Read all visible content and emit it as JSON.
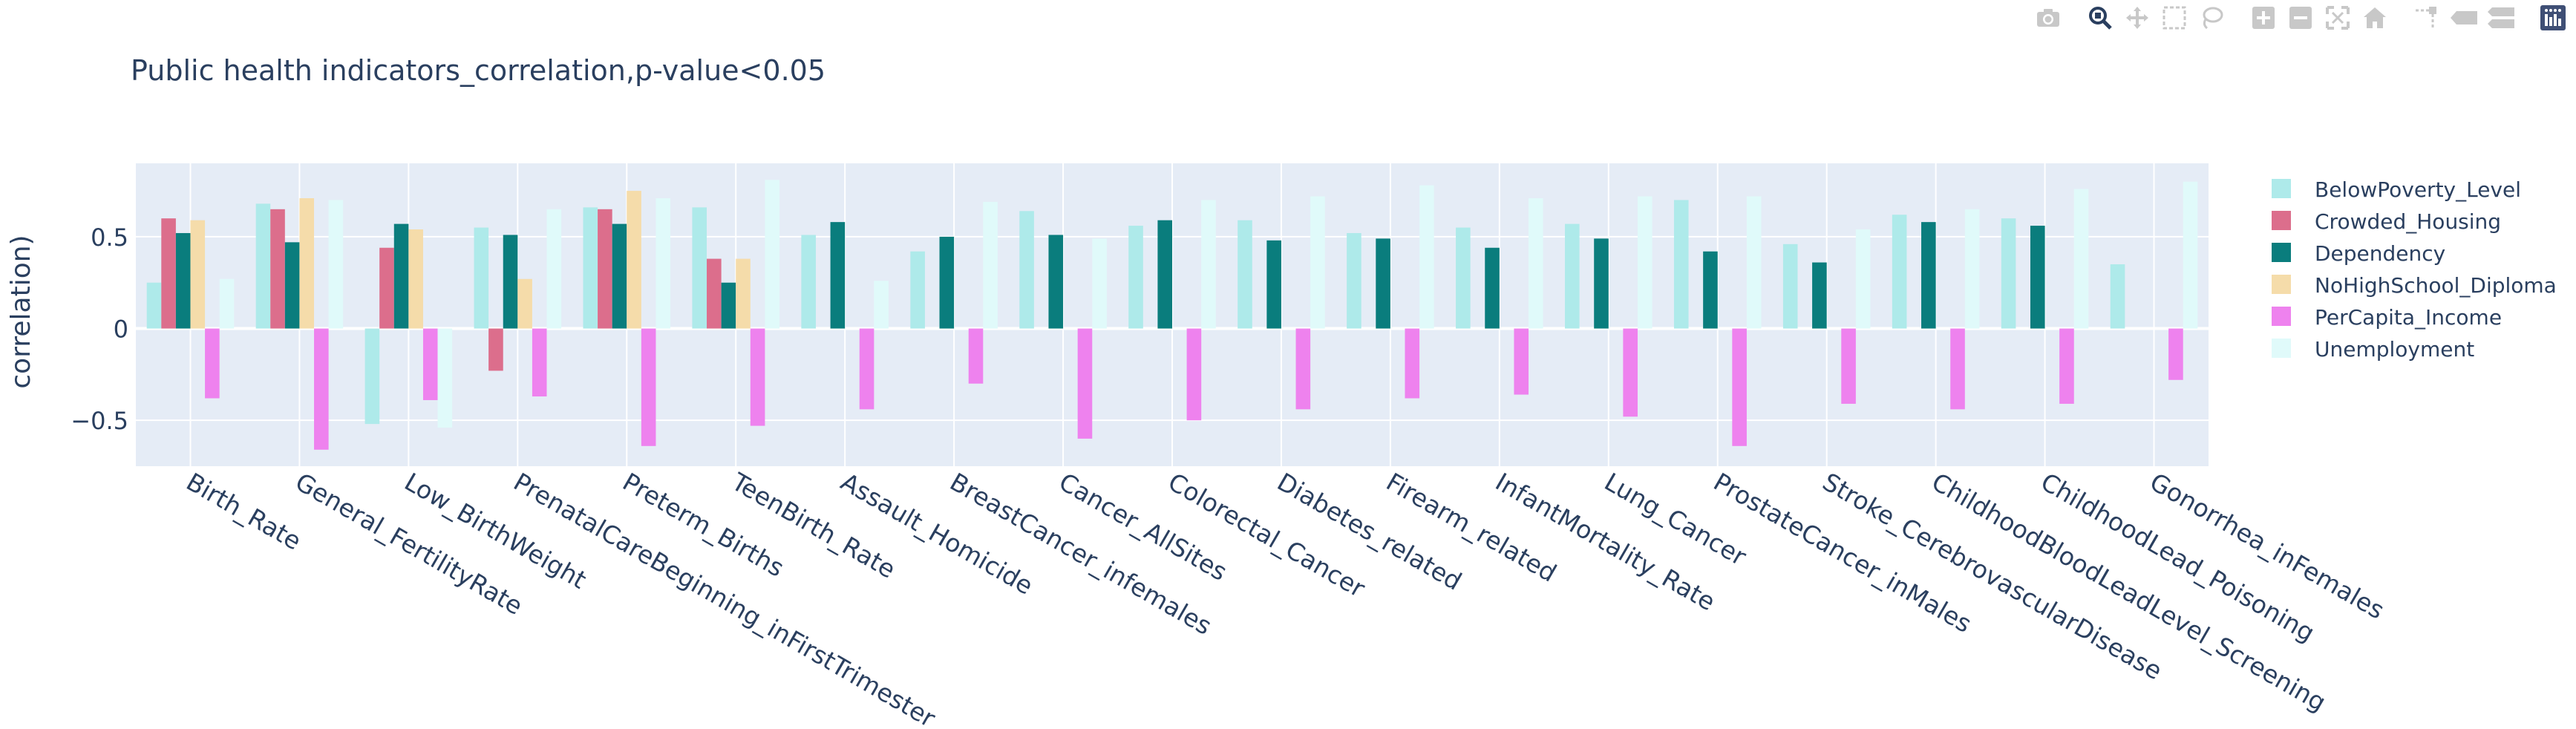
{
  "chart_data": {
    "type": "bar",
    "title": "Public health indicators_correlation,p-value<0.05",
    "xlabel": "",
    "ylabel": "correlation)",
    "ylim": [
      -0.75,
      0.9
    ],
    "y_ticks": [
      -0.5,
      0,
      0.5
    ],
    "y_tick_labels": [
      "−0.5",
      "0",
      "0.5"
    ],
    "grid": true,
    "legend_position": "top-right",
    "categories": [
      "Birth_Rate",
      "General_FertilityRate",
      "Low_BirthWeight",
      "PrenatalCareBeginning_inFirstTrimester",
      "Preterm_Births",
      "TeenBirth_Rate",
      "Assault_Homicide",
      "BreastCancer_infemales",
      "Cancer_AllSites",
      "Colorectal_Cancer",
      "Diabetes_related",
      "Firearm_related",
      "InfantMortality_Rate",
      "Lung_Cancer",
      "ProstateCancer_inMales",
      "Stroke_CerebrovascularDisease",
      "ChildhoodBloodLeadLevel_Screening",
      "ChildhoodLead_Poisoning",
      "Gonorrhea_inFemales"
    ],
    "series": [
      {
        "name": "BelowPoverty_Level",
        "color": "#aeeaea",
        "values": [
          0.25,
          0.68,
          -0.52,
          0.55,
          0.66,
          0.66,
          0.51,
          0.42,
          0.64,
          0.56,
          0.59,
          0.52,
          0.55,
          0.57,
          0.7,
          0.46,
          0.62,
          0.6,
          0.35
        ]
      },
      {
        "name": "Crowded_Housing",
        "color": "#dc6e8c",
        "values": [
          0.6,
          0.65,
          0.44,
          -0.23,
          0.65,
          0.38,
          null,
          null,
          null,
          null,
          null,
          null,
          null,
          null,
          null,
          null,
          null,
          null,
          null
        ]
      },
      {
        "name": "Dependency",
        "color": "#0a7d7d",
        "values": [
          0.52,
          0.47,
          0.57,
          0.51,
          0.57,
          0.25,
          0.58,
          0.5,
          0.51,
          0.59,
          0.48,
          0.49,
          0.44,
          0.49,
          0.42,
          0.36,
          0.58,
          0.56,
          null
        ]
      },
      {
        "name": "NoHighSchool_Diploma",
        "color": "#f5dcaa",
        "values": [
          0.59,
          0.71,
          0.54,
          0.27,
          0.75,
          0.38,
          null,
          null,
          null,
          null,
          null,
          null,
          null,
          null,
          null,
          null,
          null,
          null,
          null
        ]
      },
      {
        "name": "PerCapita_Income",
        "color": "#ee82ee",
        "values": [
          -0.38,
          -0.66,
          -0.39,
          -0.37,
          -0.64,
          -0.53,
          -0.44,
          -0.3,
          -0.6,
          -0.5,
          -0.44,
          -0.38,
          -0.36,
          -0.48,
          -0.64,
          -0.41,
          -0.44,
          -0.41,
          -0.28
        ]
      },
      {
        "name": "Unemployment",
        "color": "#e0fafa",
        "values": [
          0.27,
          0.7,
          -0.54,
          0.65,
          0.71,
          0.81,
          0.26,
          0.69,
          0.49,
          0.7,
          0.72,
          0.78,
          0.71,
          0.72,
          0.72,
          0.54,
          0.65,
          0.76,
          0.8
        ]
      }
    ]
  },
  "toolbar": {
    "buttons": [
      "camera-icon",
      "zoom-icon",
      "pan-icon",
      "box-select-icon",
      "lasso-select-icon",
      "zoom-in-icon",
      "zoom-out-icon",
      "autoscale-icon",
      "reset-axes-icon",
      "spike-lines-icon",
      "hover-closest-icon",
      "hover-compare-icon",
      "plotly-logo-icon"
    ]
  }
}
